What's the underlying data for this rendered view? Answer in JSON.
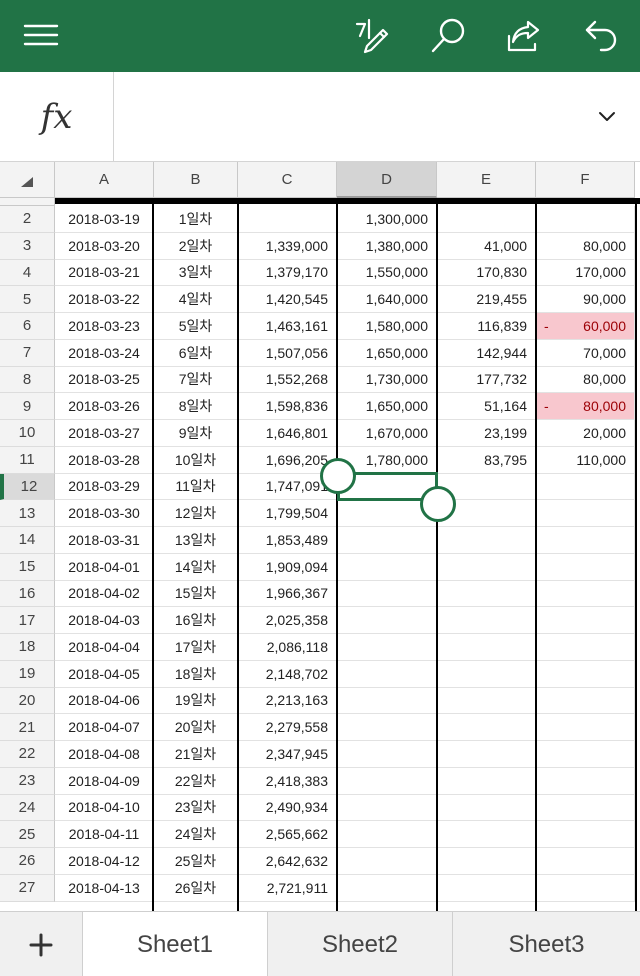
{
  "toolbar": {
    "icons": [
      "menu-icon",
      "ink-pen-icon",
      "search-icon",
      "share-icon",
      "undo-icon"
    ],
    "background": "#217346"
  },
  "formula_bar": {
    "label": "fx",
    "value": ""
  },
  "columns": [
    "A",
    "B",
    "C",
    "D",
    "E",
    "F"
  ],
  "selected_column": "D",
  "selected_row": "12",
  "rows": [
    {
      "num": "2",
      "A": "2018-03-19",
      "B": "1일차",
      "C": "",
      "D": "1,300,000",
      "E": "",
      "F": ""
    },
    {
      "num": "3",
      "A": "2018-03-20",
      "B": "2일차",
      "C": "1,339,000",
      "D": "1,380,000",
      "E": "41,000",
      "F": "80,000"
    },
    {
      "num": "4",
      "A": "2018-03-21",
      "B": "3일차",
      "C": "1,379,170",
      "D": "1,550,000",
      "E": "170,830",
      "F": "170,000"
    },
    {
      "num": "5",
      "A": "2018-03-22",
      "B": "4일차",
      "C": "1,420,545",
      "D": "1,640,000",
      "E": "219,455",
      "F": "90,000"
    },
    {
      "num": "6",
      "A": "2018-03-23",
      "B": "5일차",
      "C": "1,463,161",
      "D": "1,580,000",
      "E": "116,839",
      "F": "60,000",
      "F_neg": true
    },
    {
      "num": "7",
      "A": "2018-03-24",
      "B": "6일차",
      "C": "1,507,056",
      "D": "1,650,000",
      "E": "142,944",
      "F": "70,000"
    },
    {
      "num": "8",
      "A": "2018-03-25",
      "B": "7일차",
      "C": "1,552,268",
      "D": "1,730,000",
      "E": "177,732",
      "F": "80,000"
    },
    {
      "num": "9",
      "A": "2018-03-26",
      "B": "8일차",
      "C": "1,598,836",
      "D": "1,650,000",
      "E": "51,164",
      "F": "80,000",
      "F_neg": true
    },
    {
      "num": "10",
      "A": "2018-03-27",
      "B": "9일차",
      "C": "1,646,801",
      "D": "1,670,000",
      "E": "23,199",
      "F": "20,000"
    },
    {
      "num": "11",
      "A": "2018-03-28",
      "B": "10일차",
      "C": "1,696,205",
      "D": "1,780,000",
      "E": "83,795",
      "F": "110,000"
    },
    {
      "num": "12",
      "A": "2018-03-29",
      "B": "11일차",
      "C": "1,747,091",
      "D": "",
      "E": "",
      "F": ""
    },
    {
      "num": "13",
      "A": "2018-03-30",
      "B": "12일차",
      "C": "1,799,504",
      "D": "",
      "E": "",
      "F": ""
    },
    {
      "num": "14",
      "A": "2018-03-31",
      "B": "13일차",
      "C": "1,853,489",
      "D": "",
      "E": "",
      "F": ""
    },
    {
      "num": "15",
      "A": "2018-04-01",
      "B": "14일차",
      "C": "1,909,094",
      "D": "",
      "E": "",
      "F": ""
    },
    {
      "num": "16",
      "A": "2018-04-02",
      "B": "15일차",
      "C": "1,966,367",
      "D": "",
      "E": "",
      "F": ""
    },
    {
      "num": "17",
      "A": "2018-04-03",
      "B": "16일차",
      "C": "2,025,358",
      "D": "",
      "E": "",
      "F": ""
    },
    {
      "num": "18",
      "A": "2018-04-04",
      "B": "17일차",
      "C": "2,086,118",
      "D": "",
      "E": "",
      "F": ""
    },
    {
      "num": "19",
      "A": "2018-04-05",
      "B": "18일차",
      "C": "2,148,702",
      "D": "",
      "E": "",
      "F": ""
    },
    {
      "num": "20",
      "A": "2018-04-06",
      "B": "19일차",
      "C": "2,213,163",
      "D": "",
      "E": "",
      "F": ""
    },
    {
      "num": "21",
      "A": "2018-04-07",
      "B": "20일차",
      "C": "2,279,558",
      "D": "",
      "E": "",
      "F": ""
    },
    {
      "num": "22",
      "A": "2018-04-08",
      "B": "21일차",
      "C": "2,347,945",
      "D": "",
      "E": "",
      "F": ""
    },
    {
      "num": "23",
      "A": "2018-04-09",
      "B": "22일차",
      "C": "2,418,383",
      "D": "",
      "E": "",
      "F": ""
    },
    {
      "num": "24",
      "A": "2018-04-10",
      "B": "23일차",
      "C": "2,490,934",
      "D": "",
      "E": "",
      "F": ""
    },
    {
      "num": "25",
      "A": "2018-04-11",
      "B": "24일차",
      "C": "2,565,662",
      "D": "",
      "E": "",
      "F": ""
    },
    {
      "num": "26",
      "A": "2018-04-12",
      "B": "25일차",
      "C": "2,642,632",
      "D": "",
      "E": "",
      "F": ""
    },
    {
      "num": "27",
      "A": "2018-04-13",
      "B": "26일차",
      "C": "2,721,911",
      "D": "",
      "E": "",
      "F": ""
    }
  ],
  "negative_sign": "-",
  "colors": {
    "accent": "#217346",
    "negative_fill": "#f8c7ce",
    "negative_text": "#9c0006"
  },
  "sheets": [
    {
      "label": "Sheet1",
      "active": true
    },
    {
      "label": "Sheet2",
      "active": false
    },
    {
      "label": "Sheet3",
      "active": false
    }
  ],
  "add_sheet_icon": "plus-icon"
}
